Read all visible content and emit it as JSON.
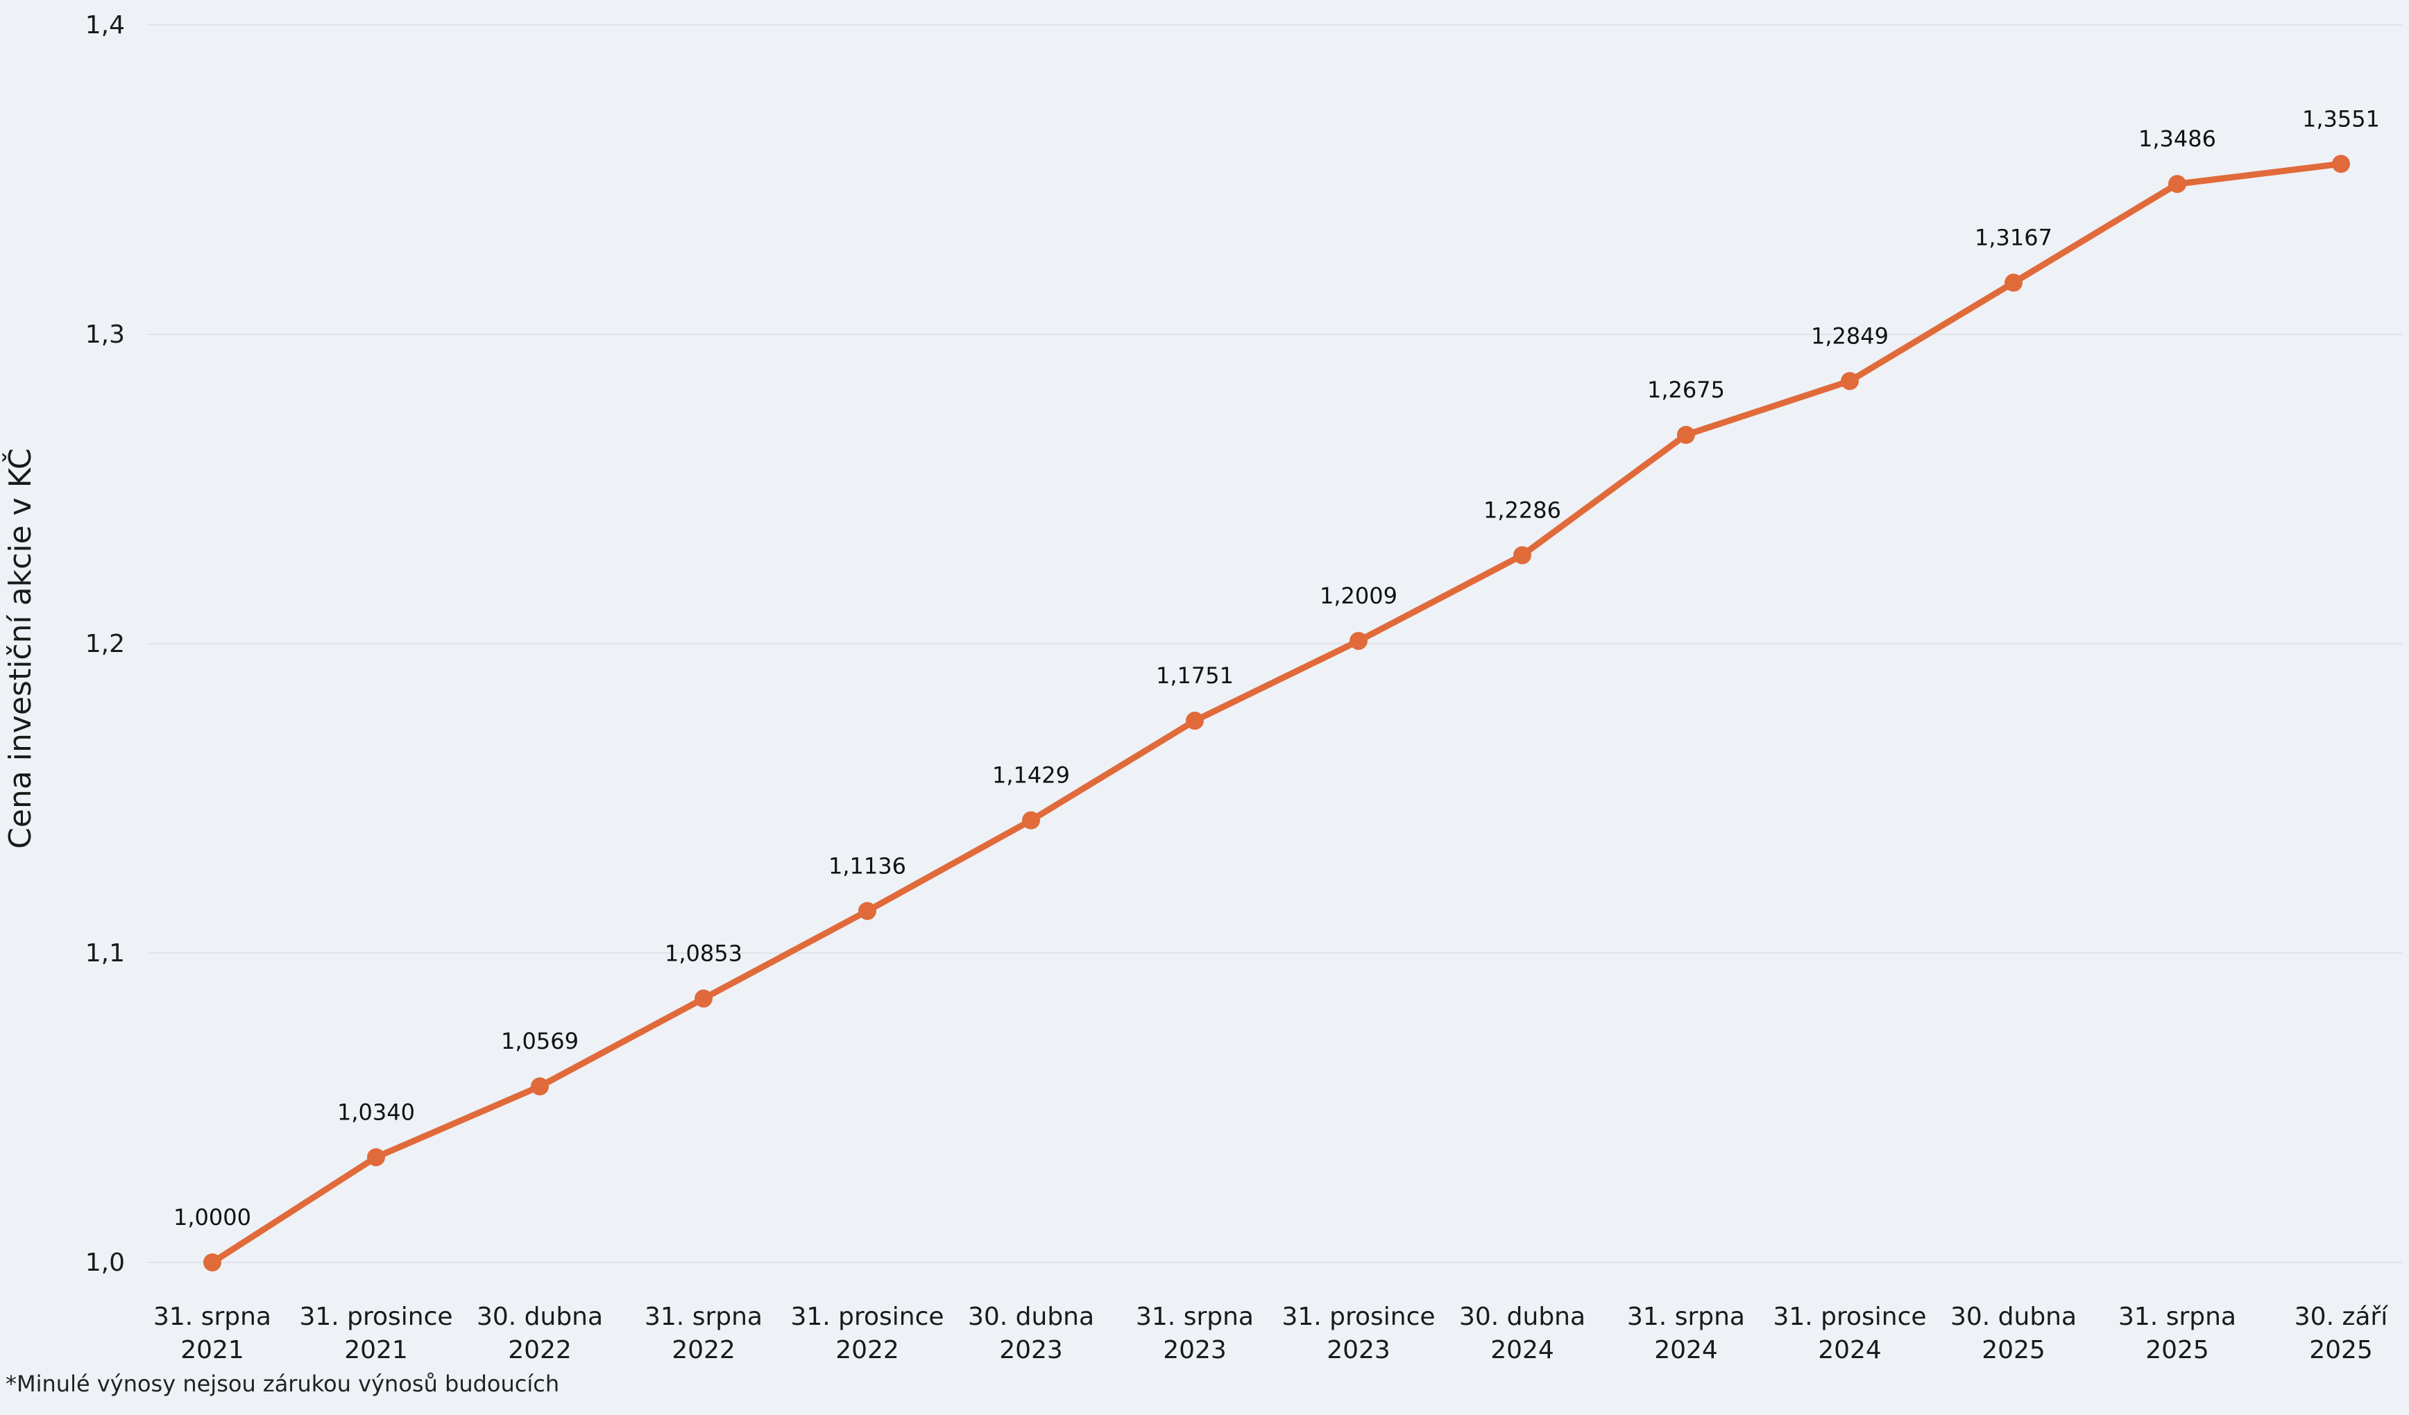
{
  "chart_data": {
    "type": "line",
    "ylabel": "Cena investiční akcie v KČ",
    "xlabel": "",
    "ylim": [
      1.0,
      1.4
    ],
    "yticks": [
      "1,0",
      "1,1",
      "1,2",
      "1,3",
      "1,4"
    ],
    "ytick_values": [
      1.0,
      1.1,
      1.2,
      1.3,
      1.4
    ],
    "grid": true,
    "line_color": "#e06a3a",
    "categories": [
      [
        "31. srpna",
        "2021"
      ],
      [
        "31. prosince",
        "2021"
      ],
      [
        "30. dubna",
        "2022"
      ],
      [
        "31. srpna",
        "2022"
      ],
      [
        "31. prosince",
        "2022"
      ],
      [
        "30. dubna",
        "2023"
      ],
      [
        "31. srpna",
        "2023"
      ],
      [
        "31. prosince",
        "2023"
      ],
      [
        "30. dubna",
        "2024"
      ],
      [
        "31. srpna",
        "2024"
      ],
      [
        "31. prosince",
        "2024"
      ],
      [
        "30. dubna",
        "2025"
      ],
      [
        "31. srpna",
        "2025"
      ],
      [
        "30. září",
        "2025"
      ]
    ],
    "values": [
      1.0,
      1.034,
      1.0569,
      1.0853,
      1.1136,
      1.1429,
      1.1751,
      1.2009,
      1.2286,
      1.2675,
      1.2849,
      1.3167,
      1.3486,
      1.3551
    ],
    "value_labels": [
      "1,0000",
      "1,0340",
      "1,0569",
      "1,0853",
      "1,1136",
      "1,1429",
      "1,1751",
      "1,2009",
      "1,2286",
      "1,2675",
      "1,2849",
      "1,3167",
      "1,3486",
      "1,3551"
    ]
  },
  "footnote": "*Minulé výnosy nejsou zárukou výnosů budoucích"
}
